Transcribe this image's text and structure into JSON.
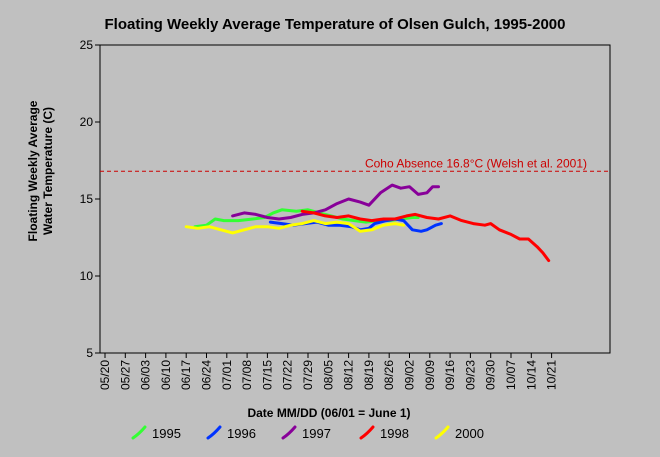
{
  "chart_data": {
    "type": "line",
    "title": "Floating Weekly Average Temperature of Olsen Gulch, 1995-2000",
    "xlabel": "Date MM/DD (06/01 = June 1)",
    "ylabel_lines": [
      "Floating Weekly Average",
      "Water Temperature (C)"
    ],
    "x_ticks": [
      "05/20",
      "05/27",
      "06/03",
      "06/10",
      "06/17",
      "06/24",
      "07/01",
      "07/08",
      "07/15",
      "07/22",
      "07/29",
      "08/05",
      "08/12",
      "08/19",
      "08/26",
      "09/02",
      "09/09",
      "09/16",
      "09/23",
      "09/30",
      "10/07",
      "10/14",
      "10/21"
    ],
    "y_ticks": [
      5,
      10,
      15,
      20,
      25
    ],
    "ylim": [
      5,
      25
    ],
    "grid": false,
    "legend_position": "bottom",
    "reference_line": {
      "label": "Coho Absence 16.8°C (Welsh et al. 2001)",
      "value": 16.8,
      "color": "#cc0000"
    },
    "series": [
      {
        "name": "1995",
        "color": "#33ff33",
        "points": [
          [
            "06/20",
            13.2
          ],
          [
            "06/24",
            13.3
          ],
          [
            "06/27",
            13.7
          ],
          [
            "06/30",
            13.6
          ],
          [
            "07/05",
            13.6
          ],
          [
            "07/10",
            13.7
          ],
          [
            "07/14",
            13.8
          ],
          [
            "07/17",
            14.1
          ],
          [
            "07/20",
            14.3
          ],
          [
            "07/25",
            14.2
          ],
          [
            "07/29",
            14.3
          ],
          [
            "08/02",
            14.1
          ],
          [
            "08/06",
            13.9
          ],
          [
            "08/10",
            13.7
          ],
          [
            "08/14",
            13.6
          ],
          [
            "08/18",
            13.5
          ],
          [
            "08/22",
            13.6
          ],
          [
            "08/26",
            13.6
          ],
          [
            "08/30",
            13.7
          ],
          [
            "09/03",
            13.8
          ],
          [
            "09/05",
            13.8
          ]
        ]
      },
      {
        "name": "1996",
        "color": "#0033ff",
        "points": [
          [
            "07/16",
            13.5
          ],
          [
            "07/20",
            13.4
          ],
          [
            "07/24",
            13.3
          ],
          [
            "07/28",
            13.4
          ],
          [
            "08/01",
            13.5
          ],
          [
            "08/05",
            13.3
          ],
          [
            "08/09",
            13.3
          ],
          [
            "08/13",
            13.2
          ],
          [
            "08/16",
            13.0
          ],
          [
            "08/19",
            13.1
          ],
          [
            "08/21",
            13.4
          ],
          [
            "08/25",
            13.6
          ],
          [
            "08/28",
            13.7
          ],
          [
            "08/31",
            13.6
          ],
          [
            "09/03",
            13.0
          ],
          [
            "09/06",
            12.9
          ],
          [
            "09/08",
            13.0
          ],
          [
            "09/11",
            13.3
          ],
          [
            "09/13",
            13.4
          ]
        ]
      },
      {
        "name": "1997",
        "color": "#880099",
        "points": [
          [
            "07/03",
            13.9
          ],
          [
            "07/07",
            14.1
          ],
          [
            "07/11",
            14.0
          ],
          [
            "07/15",
            13.8
          ],
          [
            "07/19",
            13.7
          ],
          [
            "07/23",
            13.8
          ],
          [
            "07/27",
            14.0
          ],
          [
            "07/31",
            14.1
          ],
          [
            "08/04",
            14.3
          ],
          [
            "08/08",
            14.7
          ],
          [
            "08/12",
            15.0
          ],
          [
            "08/16",
            14.8
          ],
          [
            "08/19",
            14.6
          ],
          [
            "08/23",
            15.4
          ],
          [
            "08/27",
            15.9
          ],
          [
            "08/30",
            15.7
          ],
          [
            "09/02",
            15.8
          ],
          [
            "09/05",
            15.3
          ],
          [
            "09/08",
            15.4
          ],
          [
            "09/10",
            15.8
          ],
          [
            "09/12",
            15.8
          ]
        ]
      },
      {
        "name": "1998",
        "color": "#ff0000",
        "points": [
          [
            "07/27",
            14.2
          ],
          [
            "07/31",
            14.1
          ],
          [
            "08/04",
            13.9
          ],
          [
            "08/08",
            13.8
          ],
          [
            "08/12",
            13.9
          ],
          [
            "08/16",
            13.7
          ],
          [
            "08/20",
            13.6
          ],
          [
            "08/24",
            13.7
          ],
          [
            "08/28",
            13.7
          ],
          [
            "09/01",
            13.9
          ],
          [
            "09/04",
            14.0
          ],
          [
            "09/08",
            13.8
          ],
          [
            "09/12",
            13.7
          ],
          [
            "09/16",
            13.9
          ],
          [
            "09/20",
            13.6
          ],
          [
            "09/24",
            13.4
          ],
          [
            "09/28",
            13.3
          ],
          [
            "09/30",
            13.4
          ],
          [
            "10/03",
            13.0
          ],
          [
            "10/07",
            12.7
          ],
          [
            "10/10",
            12.4
          ],
          [
            "10/13",
            12.4
          ],
          [
            "10/16",
            11.9
          ],
          [
            "10/18",
            11.5
          ],
          [
            "10/20",
            11.0
          ]
        ]
      },
      {
        "name": "2000",
        "color": "#ffff00",
        "points": [
          [
            "06/17",
            13.2
          ],
          [
            "06/21",
            13.1
          ],
          [
            "06/25",
            13.2
          ],
          [
            "06/29",
            13.0
          ],
          [
            "07/03",
            12.8
          ],
          [
            "07/07",
            13.0
          ],
          [
            "07/11",
            13.2
          ],
          [
            "07/15",
            13.2
          ],
          [
            "07/19",
            13.1
          ],
          [
            "07/23",
            13.3
          ],
          [
            "07/27",
            13.4
          ],
          [
            "07/31",
            13.6
          ],
          [
            "08/04",
            13.4
          ],
          [
            "08/08",
            13.5
          ],
          [
            "08/12",
            13.4
          ],
          [
            "08/16",
            12.9
          ],
          [
            "08/20",
            13.0
          ],
          [
            "08/24",
            13.3
          ],
          [
            "08/28",
            13.4
          ],
          [
            "08/31",
            13.3
          ]
        ]
      }
    ]
  }
}
